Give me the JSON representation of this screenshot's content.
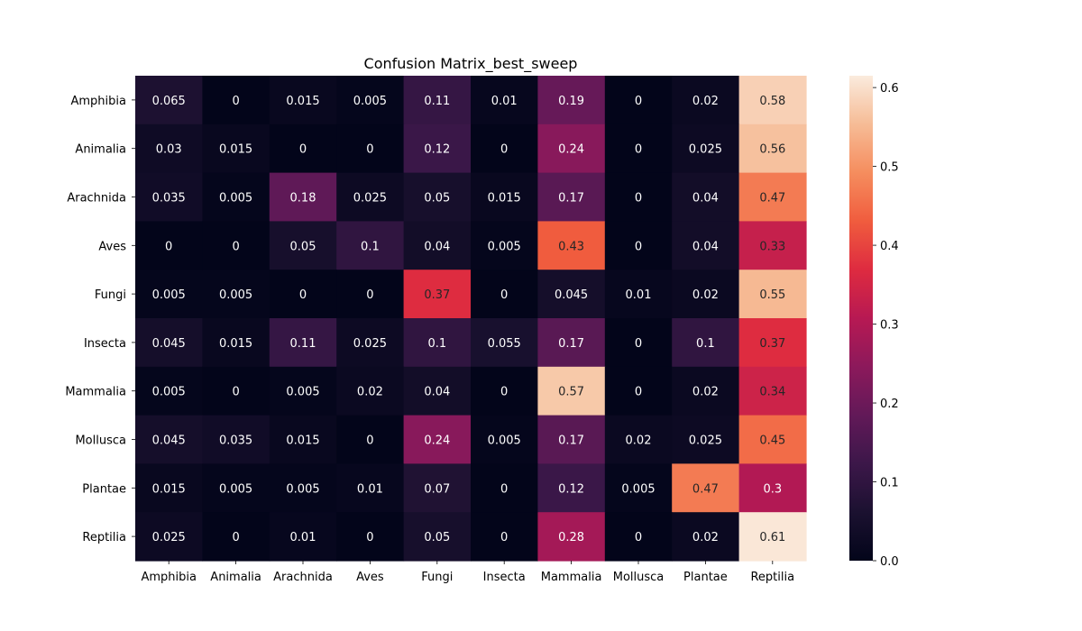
{
  "chart_data": {
    "type": "heatmap",
    "title": "Confusion Matrix_best_sweep",
    "xlabel": "",
    "ylabel": "",
    "rows": [
      "Amphibia",
      "Animalia",
      "Arachnida",
      "Aves",
      "Fungi",
      "Insecta",
      "Mammalia",
      "Mollusca",
      "Plantae",
      "Reptilia"
    ],
    "columns": [
      "Amphibia",
      "Animalia",
      "Arachnida",
      "Aves",
      "Fungi",
      "Insecta",
      "Mammalia",
      "Mollusca",
      "Plantae",
      "Reptilia"
    ],
    "values": [
      [
        0.065,
        0,
        0.015,
        0.005,
        0.11,
        0.01,
        0.19,
        0,
        0.02,
        0.58
      ],
      [
        0.03,
        0.015,
        0,
        0,
        0.12,
        0,
        0.24,
        0,
        0.025,
        0.56
      ],
      [
        0.035,
        0.005,
        0.18,
        0.025,
        0.05,
        0.015,
        0.17,
        0,
        0.04,
        0.47
      ],
      [
        0,
        0,
        0.05,
        0.1,
        0.04,
        0.005,
        0.43,
        0,
        0.04,
        0.33
      ],
      [
        0.005,
        0.005,
        0,
        0,
        0.37,
        0,
        0.045,
        0.01,
        0.02,
        0.55
      ],
      [
        0.045,
        0.015,
        0.11,
        0.025,
        0.1,
        0.055,
        0.17,
        0,
        0.1,
        0.37
      ],
      [
        0.005,
        0,
        0.005,
        0.02,
        0.04,
        0,
        0.57,
        0,
        0.02,
        0.34
      ],
      [
        0.045,
        0.035,
        0.015,
        0,
        0.24,
        0.005,
        0.17,
        0.02,
        0.025,
        0.45
      ],
      [
        0.015,
        0.005,
        0.005,
        0.01,
        0.07,
        0,
        0.12,
        0.005,
        0.47,
        0.3
      ],
      [
        0.025,
        0,
        0.01,
        0,
        0.05,
        0,
        0.28,
        0,
        0.02,
        0.61
      ]
    ],
    "colormap": "rocket",
    "colorbar": {
      "range": [
        0,
        0.615
      ],
      "ticks": [
        "0.0",
        "0.1",
        "0.2",
        "0.3",
        "0.4",
        "0.5",
        "0.6"
      ]
    },
    "grid": false,
    "legend": "colorbar-right"
  }
}
